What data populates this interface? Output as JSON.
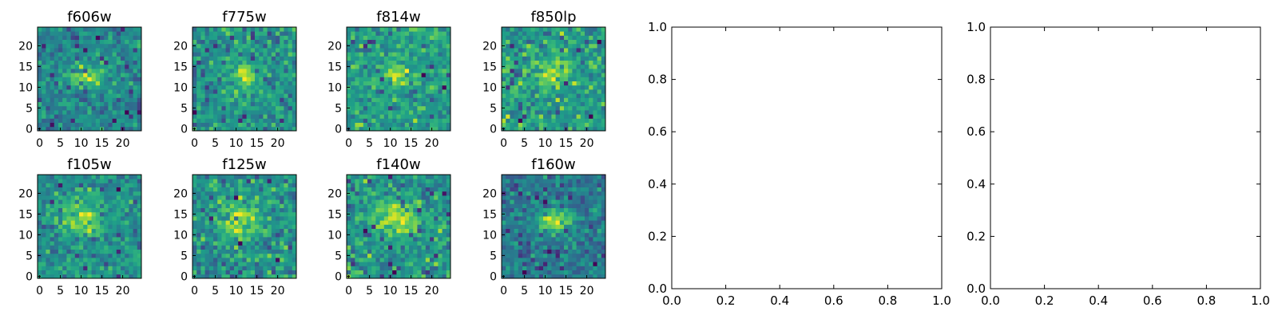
{
  "chart_data": [
    {
      "type": "heatmap",
      "title": "f606w",
      "colormap": "viridis",
      "grid_size": 25,
      "seed": 11,
      "source_x": 11,
      "source_y": 12.5,
      "source_sx": 3.2,
      "source_sy": 1.6,
      "strength": 2.3,
      "x_ticks": [
        "0",
        "5",
        "10",
        "15",
        "20"
      ],
      "y_ticks": [
        "0",
        "5",
        "10",
        "15",
        "20"
      ],
      "xlim": [
        0,
        24
      ],
      "ylim": [
        0,
        24
      ]
    },
    {
      "type": "heatmap",
      "title": "f775w",
      "colormap": "viridis",
      "grid_size": 25,
      "seed": 23,
      "source_x": 12,
      "source_y": 13,
      "source_sx": 2.0,
      "source_sy": 2.0,
      "strength": 2.1,
      "x_ticks": [
        "0",
        "5",
        "10",
        "15",
        "20"
      ],
      "y_ticks": [
        "0",
        "5",
        "10",
        "15",
        "20"
      ],
      "xlim": [
        0,
        24
      ],
      "ylim": [
        0,
        24
      ]
    },
    {
      "type": "heatmap",
      "title": "f814w",
      "colormap": "viridis",
      "grid_size": 25,
      "seed": 37,
      "source_x": 11.5,
      "source_y": 13,
      "source_sx": 2.0,
      "source_sy": 2.0,
      "strength": 2.0,
      "x_ticks": [
        "0",
        "5",
        "10",
        "15",
        "20"
      ],
      "y_ticks": [
        "0",
        "5",
        "10",
        "15",
        "20"
      ],
      "xlim": [
        0,
        24
      ],
      "ylim": [
        0,
        24
      ]
    },
    {
      "type": "heatmap",
      "title": "f850lp",
      "colormap": "viridis",
      "grid_size": 25,
      "seed": 41,
      "source_x": 11.5,
      "source_y": 13.5,
      "source_sx": 2.5,
      "source_sy": 2.5,
      "strength": 1.2,
      "x_ticks": [
        "0",
        "5",
        "10",
        "15",
        "20"
      ],
      "y_ticks": [
        "0",
        "5",
        "10",
        "15",
        "20"
      ],
      "xlim": [
        0,
        24
      ],
      "ylim": [
        0,
        24
      ]
    },
    {
      "type": "heatmap",
      "title": "f105w",
      "colormap": "viridis",
      "grid_size": 25,
      "seed": 53,
      "source_x": 10,
      "source_y": 14,
      "source_sx": 3.5,
      "source_sy": 3.0,
      "strength": 2.2,
      "x_ticks": [
        "0",
        "5",
        "10",
        "15",
        "20"
      ],
      "y_ticks": [
        "0",
        "5",
        "10",
        "15",
        "20"
      ],
      "xlim": [
        0,
        24
      ],
      "ylim": [
        0,
        24
      ]
    },
    {
      "type": "heatmap",
      "title": "f125w",
      "colormap": "viridis",
      "grid_size": 25,
      "seed": 67,
      "source_x": 11,
      "source_y": 14,
      "source_sx": 3.5,
      "source_sy": 3.0,
      "strength": 1.6,
      "x_ticks": [
        "0",
        "5",
        "10",
        "15",
        "20"
      ],
      "y_ticks": [
        "0",
        "5",
        "10",
        "15",
        "20"
      ],
      "xlim": [
        0,
        24
      ],
      "ylim": [
        0,
        24
      ]
    },
    {
      "type": "heatmap",
      "title": "f140w",
      "colormap": "viridis",
      "grid_size": 25,
      "seed": 79,
      "source_x": 11.5,
      "source_y": 14,
      "source_sx": 3.5,
      "source_sy": 2.8,
      "strength": 2.0,
      "x_ticks": [
        "0",
        "5",
        "10",
        "15",
        "20"
      ],
      "y_ticks": [
        "0",
        "5",
        "10",
        "15",
        "20"
      ],
      "xlim": [
        0,
        24
      ],
      "ylim": [
        0,
        24
      ]
    },
    {
      "type": "heatmap",
      "title": "f160w",
      "colormap": "viridis",
      "grid_size": 25,
      "seed": 97,
      "source_x": 12.5,
      "source_y": 13.5,
      "source_sx": 3.0,
      "source_sy": 2.3,
      "strength": 2.4,
      "x_ticks": [
        "0",
        "5",
        "10",
        "15",
        "20"
      ],
      "y_ticks": [
        "0",
        "5",
        "10",
        "15",
        "20"
      ],
      "xlim": [
        0,
        24
      ],
      "ylim": [
        0,
        24
      ]
    },
    {
      "type": "line",
      "title": "",
      "series": [],
      "xlim": [
        0.0,
        1.0
      ],
      "ylim": [
        0.0,
        1.0
      ],
      "x_ticks": [
        "0.0",
        "0.2",
        "0.4",
        "0.6",
        "0.8",
        "1.0"
      ],
      "y_ticks": [
        "0.0",
        "0.2",
        "0.4",
        "0.6",
        "0.8",
        "1.0"
      ]
    },
    {
      "type": "line",
      "title": "",
      "series": [],
      "xlim": [
        0.0,
        1.0
      ],
      "ylim": [
        0.0,
        1.0
      ],
      "x_ticks": [
        "0.0",
        "0.2",
        "0.4",
        "0.6",
        "0.8",
        "1.0"
      ],
      "y_ticks": [
        "0.0",
        "0.2",
        "0.4",
        "0.6",
        "0.8",
        "1.0"
      ]
    }
  ]
}
